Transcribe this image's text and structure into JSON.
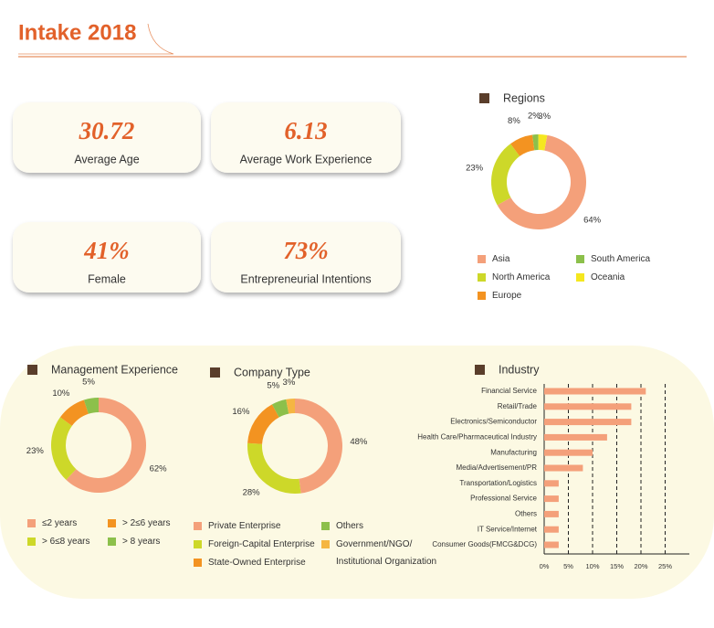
{
  "header": {
    "title": "Intake 2018"
  },
  "stats": [
    {
      "value": "30.72",
      "label": "Average Age"
    },
    {
      "value": "6.13",
      "label": "Average Work Experience"
    },
    {
      "value": "41%",
      "label": "Female"
    },
    {
      "value": "73%",
      "label": "Entrepreneurial Intentions"
    }
  ],
  "chart_data": [
    {
      "type": "donut",
      "title": "Regions",
      "categories": [
        "Asia",
        "North America",
        "Europe",
        "South America",
        "Oceania"
      ],
      "values": [
        64,
        23,
        8,
        2,
        3
      ],
      "value_labels": [
        "64%",
        "23%",
        "8%",
        "2%",
        "3%"
      ],
      "colors": [
        "#f4a07a",
        "#cdd829",
        "#f39321",
        "#8cc04b",
        "#f5e71f"
      ]
    },
    {
      "type": "donut",
      "title": "Management Experience",
      "categories": [
        "≤2 years",
        "> 6≤8 years",
        "> 2≤6 years",
        "> 8 years"
      ],
      "values": [
        62,
        23,
        10,
        5
      ],
      "value_labels": [
        "62%",
        "23%",
        "10%",
        "5%"
      ],
      "colors": [
        "#f4a07a",
        "#cdd829",
        "#f39321",
        "#8cc04b"
      ]
    },
    {
      "type": "donut",
      "title": "Company Type",
      "categories": [
        "Private Enterprise",
        "Foreign-Capital Enterprise",
        "State-Owned Enterprise",
        "Others",
        "Government/NGO/\nInstitutional Organization"
      ],
      "values": [
        48,
        28,
        16,
        5,
        3
      ],
      "value_labels": [
        "48%",
        "28%",
        "16%",
        "5%",
        "3%"
      ],
      "colors": [
        "#f4a07a",
        "#cdd829",
        "#f39321",
        "#8cc04b",
        "#f5b642"
      ]
    },
    {
      "type": "hbar",
      "title": "Industry",
      "categories": [
        "Financial Service",
        "Retail/Trade",
        "Electronics/Semiconductor",
        "Health Care/Pharmaceutical Industry",
        "Manufacturing",
        "Media/Advertisement/PR",
        "Transportation/Logistics",
        "Professional Service",
        "Others",
        "IT Service/Internet",
        "Consumer Goods(FMCG&DCG)"
      ],
      "values": [
        21,
        18,
        18,
        13,
        10,
        8,
        3,
        3,
        3,
        3,
        3
      ],
      "color": "#f4a07a",
      "xlim": [
        0,
        30
      ],
      "xticks": [
        {
          "value": 0,
          "label": "0%"
        },
        {
          "value": 5,
          "label": "5%"
        },
        {
          "value": 10,
          "label": "10%"
        },
        {
          "value": 15,
          "label": "15%"
        },
        {
          "value": 20,
          "label": "20%"
        },
        {
          "value": 25,
          "label": "25%"
        }
      ],
      "grid": true
    }
  ]
}
